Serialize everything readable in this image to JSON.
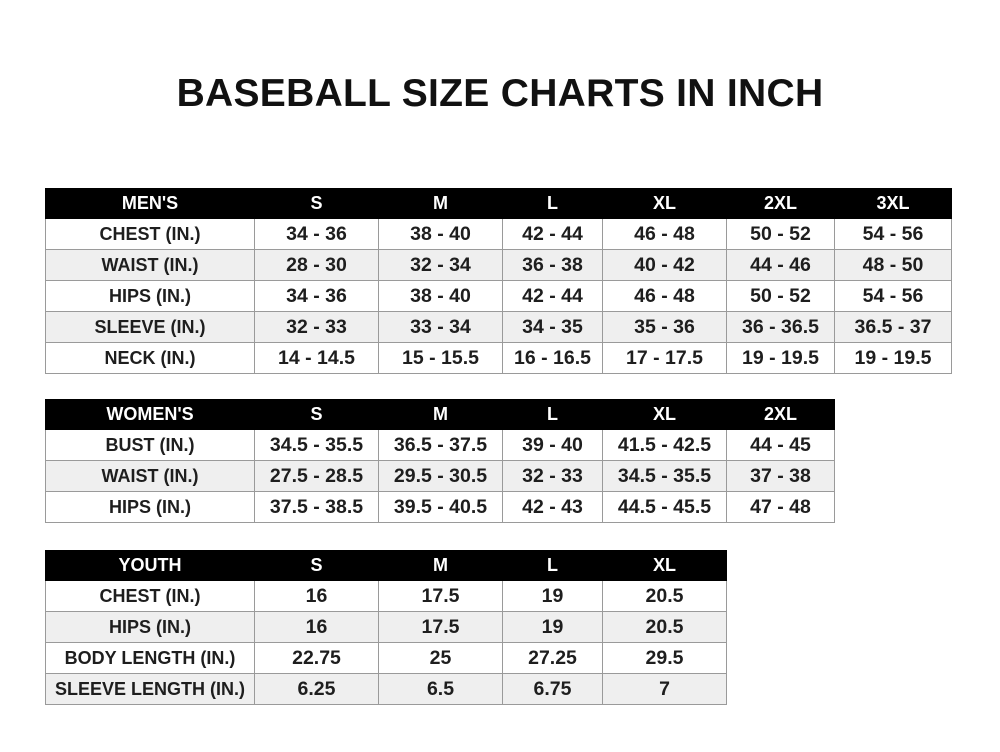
{
  "title": "BASEBALL SIZE CHARTS IN INCH",
  "men": {
    "header": [
      "MEN'S",
      "S",
      "M",
      "L",
      "XL",
      "2XL",
      "3XL"
    ],
    "rows": [
      [
        "CHEST (IN.)",
        "34 - 36",
        "38 - 40",
        "42 - 44",
        "46 - 48",
        "50 - 52",
        "54 - 56"
      ],
      [
        "WAIST (IN.)",
        "28 - 30",
        "32 - 34",
        "36 - 38",
        "40 - 42",
        "44 - 46",
        "48 - 50"
      ],
      [
        "HIPS (IN.)",
        "34 - 36",
        "38 - 40",
        "42 - 44",
        "46 - 48",
        "50 - 52",
        "54 - 56"
      ],
      [
        "SLEEVE (IN.)",
        "32 - 33",
        "33 - 34",
        "34 - 35",
        "35 - 36",
        "36 - 36.5",
        "36.5 - 37"
      ],
      [
        "NECK (IN.)",
        "14 - 14.5",
        "15 - 15.5",
        "16 - 16.5",
        "17 - 17.5",
        "19 - 19.5",
        "19 - 19.5"
      ]
    ]
  },
  "women": {
    "header": [
      "WOMEN'S",
      "S",
      "M",
      "L",
      "XL",
      "2XL"
    ],
    "rows": [
      [
        "BUST (IN.)",
        "34.5 - 35.5",
        "36.5 - 37.5",
        "39 - 40",
        "41.5 - 42.5",
        "44 - 45"
      ],
      [
        "WAIST (IN.)",
        "27.5 - 28.5",
        "29.5 - 30.5",
        "32 - 33",
        "34.5 - 35.5",
        "37 - 38"
      ],
      [
        "HIPS (IN.)",
        "37.5 - 38.5",
        "39.5 - 40.5",
        "42 - 43",
        "44.5 - 45.5",
        "47 - 48"
      ]
    ]
  },
  "youth": {
    "header": [
      "YOUTH",
      "S",
      "M",
      "L",
      "XL"
    ],
    "rows": [
      [
        "CHEST (IN.)",
        "16",
        "17.5",
        "19",
        "20.5"
      ],
      [
        "HIPS (IN.)",
        "16",
        "17.5",
        "19",
        "20.5"
      ],
      [
        "BODY LENGTH (IN.)",
        "22.75",
        "25",
        "27.25",
        "29.5"
      ],
      [
        "SLEEVE LENGTH (IN.)",
        "6.25",
        "6.5",
        "6.75",
        "7"
      ]
    ]
  },
  "colors": {
    "header_bg": "#000000",
    "header_text": "#ffffff",
    "alt_row": "#efefef",
    "border": "#9a9a9a"
  }
}
